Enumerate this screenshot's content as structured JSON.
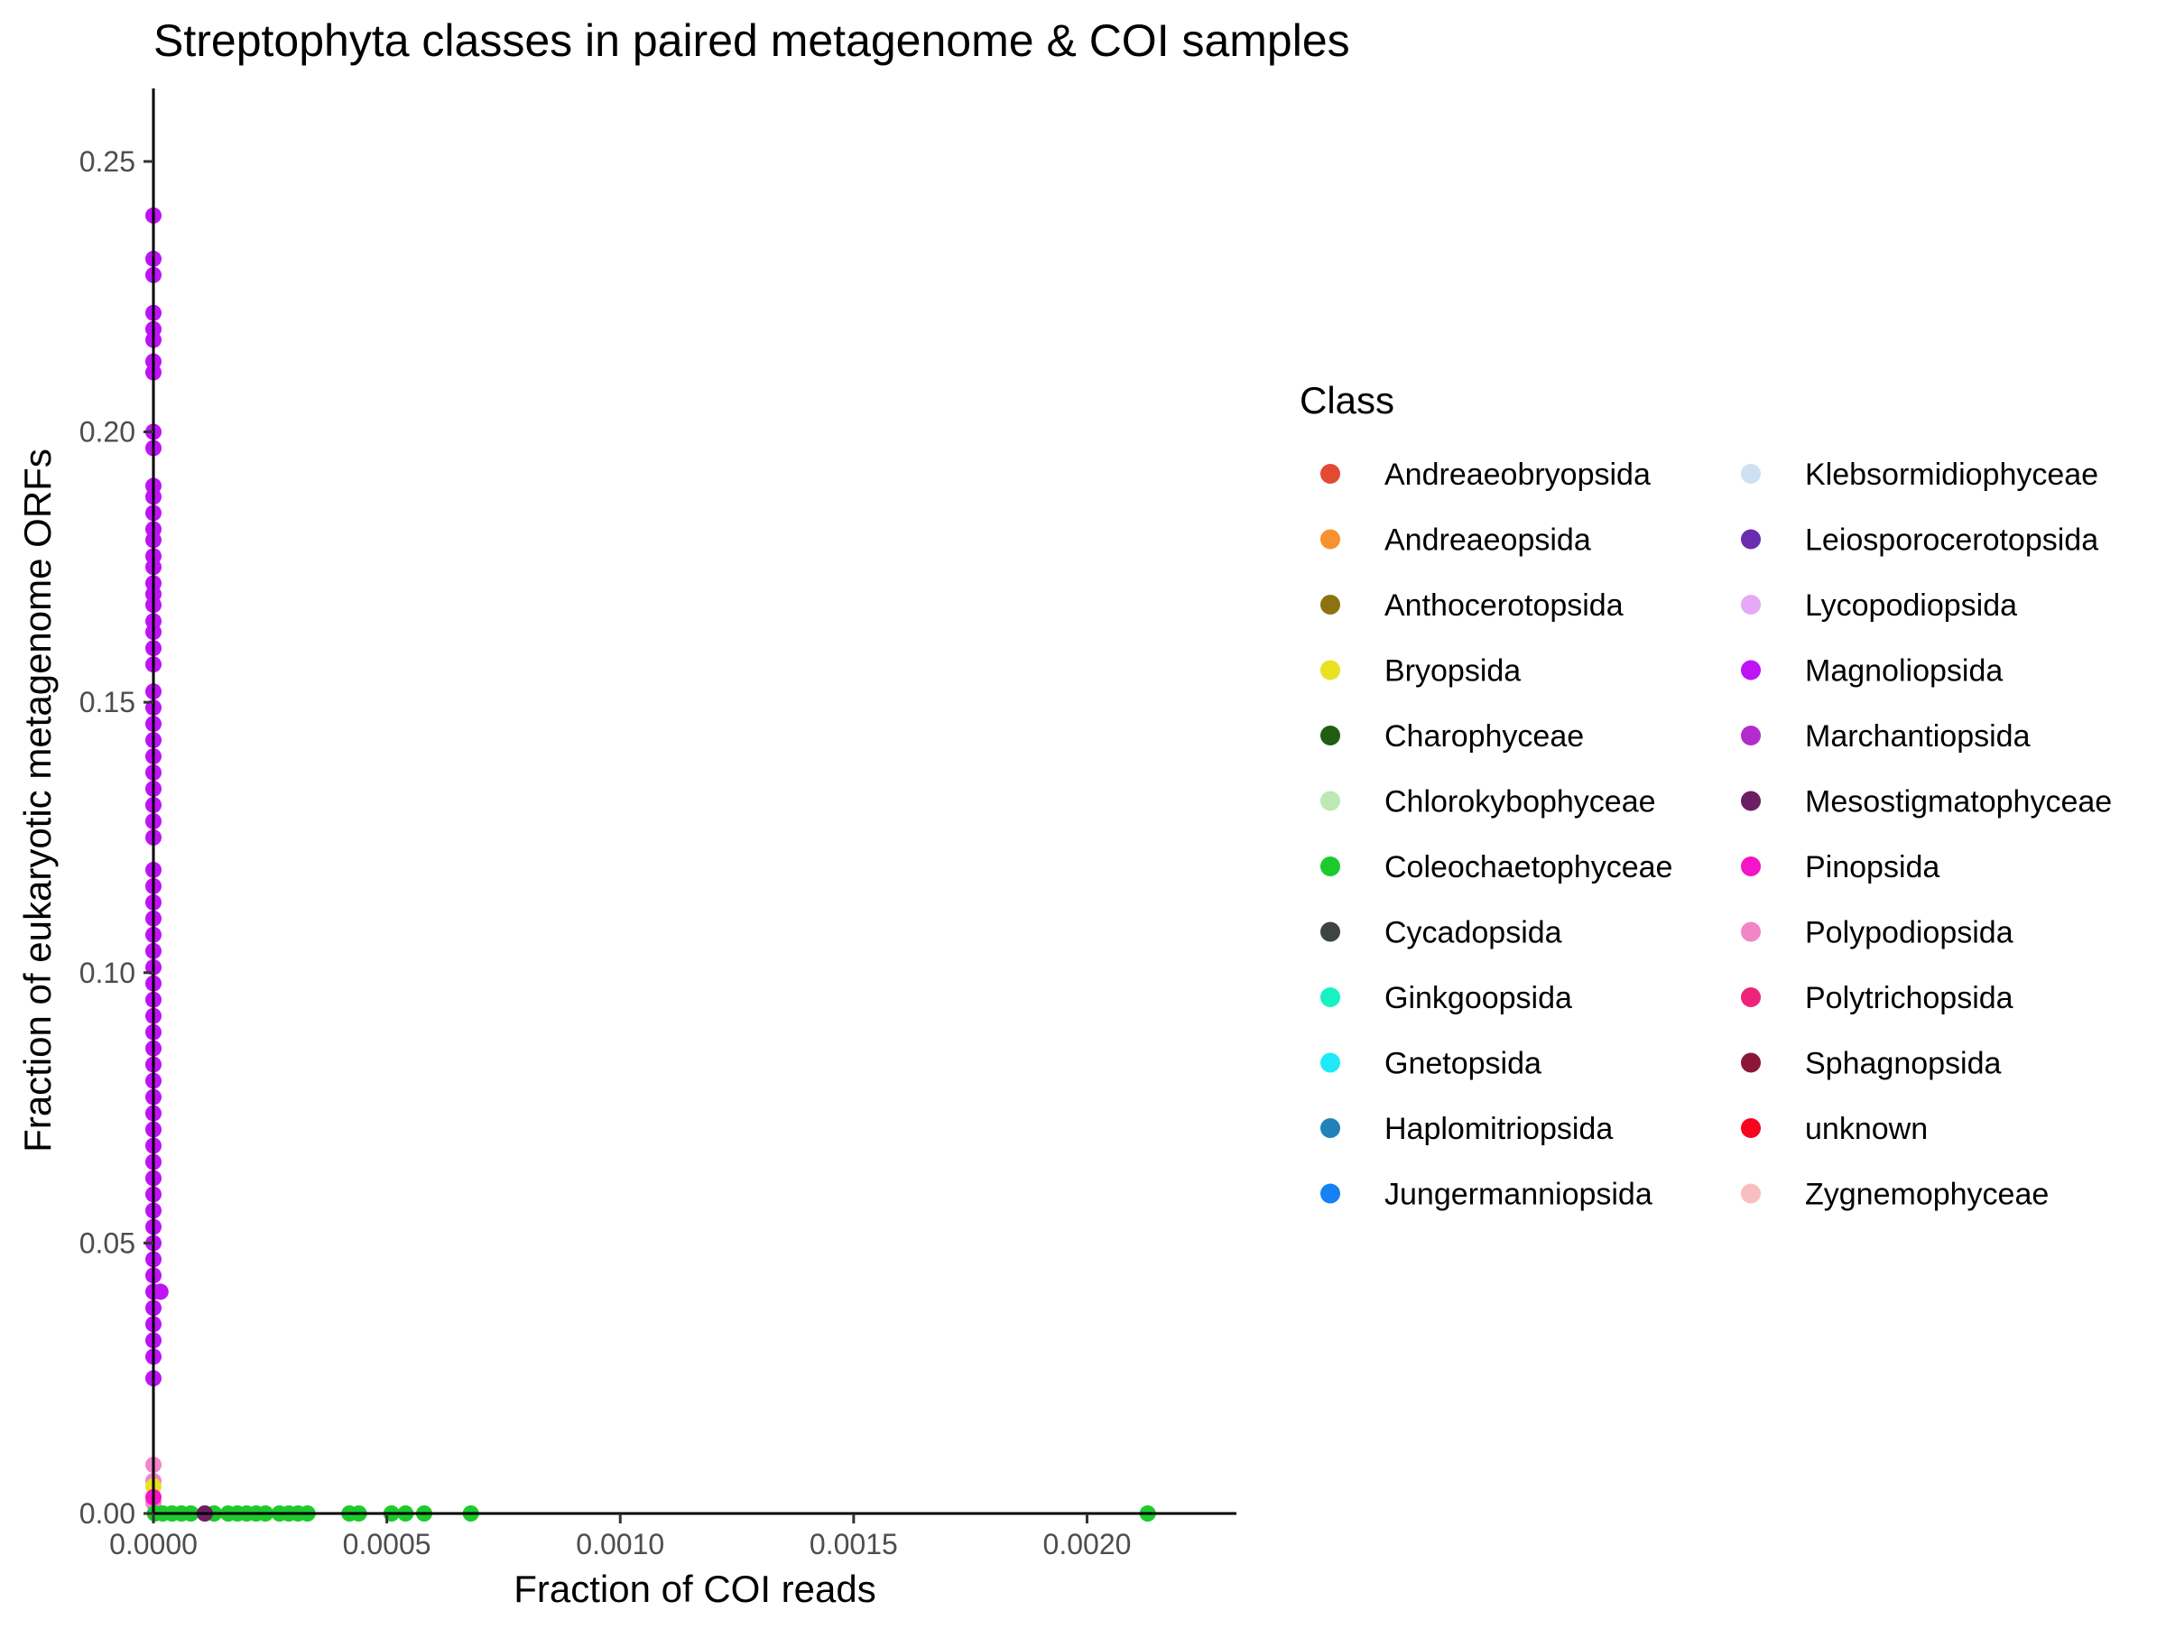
{
  "chart_data": {
    "type": "scatter",
    "title": "Streptophyta classes in paired metagenome & COI samples",
    "xlabel": "Fraction of COI reads",
    "ylabel": "Fraction of eukaryotic metagenome ORFs",
    "xlim": [
      0,
      0.00232
    ],
    "ylim": [
      0,
      0.2635
    ],
    "x_ticks": [
      0,
      0.0005,
      0.001,
      0.0015,
      0.002
    ],
    "x_tick_labels": [
      "0.0000",
      "0.0005",
      "0.0010",
      "0.0015",
      "0.0020"
    ],
    "y_ticks": [
      0,
      0.05,
      0.1,
      0.15,
      0.2,
      0.25
    ],
    "y_tick_labels": [
      "0.00",
      "0.05",
      "0.10",
      "0.15",
      "0.20",
      "0.25"
    ],
    "grid": false,
    "legend": {
      "title": "Class",
      "placement": "right",
      "columns": 2,
      "entries": [
        {
          "label": "Andreaeobryopsida",
          "color": "#E24A33"
        },
        {
          "label": "Andreaeopsida",
          "color": "#F7922E"
        },
        {
          "label": "Anthocerotopsida",
          "color": "#8B7410"
        },
        {
          "label": "Bryopsida",
          "color": "#E9E222"
        },
        {
          "label": "Charophyceae",
          "color": "#1F5E12"
        },
        {
          "label": "Chlorokybophyceae",
          "color": "#BDE8B4"
        },
        {
          "label": "Coleochaetophyceae",
          "color": "#1DCA2C"
        },
        {
          "label": "Cycadopsida",
          "color": "#3E4443"
        },
        {
          "label": "Ginkgoopsida",
          "color": "#17F2C0"
        },
        {
          "label": "Gnetopsida",
          "color": "#1FE9F8"
        },
        {
          "label": "Haplomitriopsida",
          "color": "#2082B8"
        },
        {
          "label": "Jungermanniopsida",
          "color": "#1482F2"
        },
        {
          "label": "Klebsormidiophyceae",
          "color": "#CFE0F2"
        },
        {
          "label": "Leiosporocerotopsida",
          "color": "#6A2DB0"
        },
        {
          "label": "Lycopodiopsida",
          "color": "#E4AAF6"
        },
        {
          "label": "Magnoliopsida",
          "color": "#BE14F5"
        },
        {
          "label": "Marchantiopsida",
          "color": "#B32CCB"
        },
        {
          "label": "Mesostigmatophyceae",
          "color": "#6C1E63"
        },
        {
          "label": "Pinopsida",
          "color": "#F514C8"
        },
        {
          "label": "Polypodiopsida",
          "color": "#F284C8"
        },
        {
          "label": "Polytrichopsida",
          "color": "#F0237A"
        },
        {
          "label": "Sphagnopsida",
          "color": "#8A1738"
        },
        {
          "label": "unknown",
          "color": "#F5061F"
        },
        {
          "label": "Zygnemophyceae",
          "color": "#F8BFC1"
        }
      ]
    },
    "series": [
      {
        "name": "Magnoliopsida",
        "points": [
          [
            0,
            0.24
          ],
          [
            0,
            0.232
          ],
          [
            0,
            0.229
          ],
          [
            0,
            0.222
          ],
          [
            0,
            0.219
          ],
          [
            0,
            0.217
          ],
          [
            0,
            0.213
          ],
          [
            0,
            0.211
          ],
          [
            0,
            0.2
          ],
          [
            0,
            0.197
          ],
          [
            0,
            0.19
          ],
          [
            0,
            0.188
          ],
          [
            0,
            0.185
          ],
          [
            0,
            0.182
          ],
          [
            0,
            0.18
          ],
          [
            0,
            0.177
          ],
          [
            0,
            0.175
          ],
          [
            0,
            0.172
          ],
          [
            0,
            0.17
          ],
          [
            0,
            0.168
          ],
          [
            0,
            0.165
          ],
          [
            0,
            0.163
          ],
          [
            0,
            0.16
          ],
          [
            0,
            0.157
          ],
          [
            0,
            0.152
          ],
          [
            0,
            0.149
          ],
          [
            0,
            0.146
          ],
          [
            0,
            0.143
          ],
          [
            0,
            0.14
          ],
          [
            0,
            0.137
          ],
          [
            0,
            0.134
          ],
          [
            0,
            0.131
          ],
          [
            0,
            0.128
          ],
          [
            0,
            0.125
          ],
          [
            0,
            0.119
          ],
          [
            0,
            0.116
          ],
          [
            0,
            0.113
          ],
          [
            0,
            0.11
          ],
          [
            0,
            0.107
          ],
          [
            0,
            0.104
          ],
          [
            0,
            0.101
          ],
          [
            0,
            0.098
          ],
          [
            0,
            0.095
          ],
          [
            0,
            0.092
          ],
          [
            0,
            0.089
          ],
          [
            0,
            0.086
          ],
          [
            0,
            0.083
          ],
          [
            0,
            0.08
          ],
          [
            0,
            0.077
          ],
          [
            0,
            0.074
          ],
          [
            0,
            0.071
          ],
          [
            0,
            0.068
          ],
          [
            0,
            0.065
          ],
          [
            0,
            0.062
          ],
          [
            0,
            0.059
          ],
          [
            0,
            0.056
          ],
          [
            0,
            0.053
          ],
          [
            0,
            0.05
          ],
          [
            0,
            0.047
          ],
          [
            0,
            0.044
          ],
          [
            0,
            0.041
          ],
          [
            1.5e-05,
            0.041
          ],
          [
            0,
            0.038
          ],
          [
            0,
            0.035
          ],
          [
            0,
            0.032
          ],
          [
            0,
            0.029
          ],
          [
            0,
            0.025
          ]
        ]
      },
      {
        "name": "Polypodiopsida",
        "points": [
          [
            0,
            0.009
          ],
          [
            0,
            0.006
          ],
          [
            0,
            0.002
          ]
        ]
      },
      {
        "name": "Bryopsida",
        "points": [
          [
            0,
            0.005
          ]
        ]
      },
      {
        "name": "Pinopsida",
        "points": [
          [
            0,
            0.003
          ]
        ]
      },
      {
        "name": "Coleochaetophyceae",
        "points": [
          [
            3e-06,
            0
          ],
          [
            2e-05,
            0
          ],
          [
            4e-05,
            0
          ],
          [
            6e-05,
            0
          ],
          [
            8e-05,
            0
          ],
          [
            0.00013,
            0
          ],
          [
            0.00016,
            0
          ],
          [
            0.00018,
            0
          ],
          [
            0.0002,
            0
          ],
          [
            0.00022,
            0
          ],
          [
            0.00024,
            0
          ],
          [
            0.00027,
            0
          ],
          [
            0.00029,
            0
          ],
          [
            0.00031,
            0
          ],
          [
            0.00033,
            0
          ],
          [
            0.00042,
            0
          ],
          [
            0.00044,
            0
          ],
          [
            0.00051,
            0
          ],
          [
            0.00054,
            0
          ],
          [
            0.00058,
            0
          ],
          [
            0.00068,
            0
          ],
          [
            0.00213,
            0
          ]
        ]
      },
      {
        "name": "Mesostigmatophyceae",
        "points": [
          [
            0.00011,
            0
          ]
        ]
      }
    ]
  }
}
